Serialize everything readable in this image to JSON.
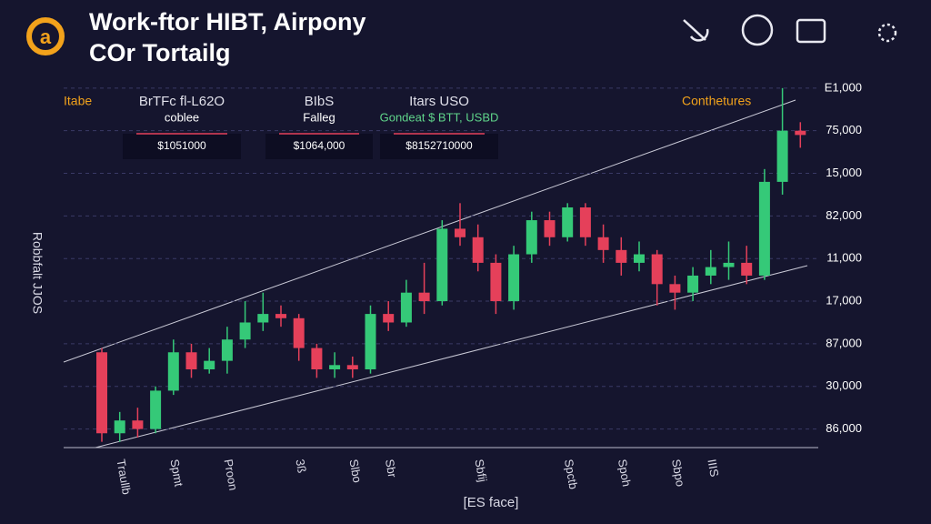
{
  "header": {
    "title": "Work-ftor HIBT, Airpony",
    "subtitle": "COr Tortailg"
  },
  "stats_label": "Itabe",
  "stats": [
    {
      "label": "BrTFc fl-L62O",
      "sublabel": "coblee",
      "value": "$1051000"
    },
    {
      "label": "BIbS",
      "sublabel": "Falleg",
      "value": "$1064,000"
    },
    {
      "label": "Itars USO",
      "sublabel": "Gondeat $ BTT, USBD",
      "value": "$8152710000"
    }
  ],
  "note": "Conthetures",
  "chart_data": {
    "type": "candlestick",
    "x_label": "[ES face]",
    "y_label": "Robbfalt JJOS",
    "categories": [
      null,
      "Traullb",
      null,
      null,
      "Spmt",
      null,
      null,
      "Proon",
      null,
      null,
      null,
      "3ß",
      null,
      null,
      "Slbo",
      null,
      "Sbr",
      null,
      null,
      null,
      null,
      "Sbfij",
      null,
      null,
      null,
      null,
      "Spctb",
      null,
      null,
      "Spoh",
      null,
      null,
      "Sbpo",
      null,
      "IIIS",
      null,
      null,
      null,
      null,
      null
    ],
    "open": [
      2.3,
      0.4,
      0.7,
      0.5,
      1.4,
      2.3,
      1.9,
      2.1,
      2.6,
      3.0,
      3.2,
      3.1,
      2.4,
      1.9,
      2.0,
      1.9,
      3.2,
      3.0,
      3.7,
      3.5,
      5.2,
      5.0,
      4.4,
      3.5,
      4.6,
      5.4,
      5.0,
      5.7,
      5.0,
      4.7,
      4.4,
      4.6,
      3.9,
      3.7,
      4.1,
      4.3,
      4.4,
      4.1,
      6.3,
      7.5
    ],
    "high": [
      2.4,
      0.9,
      1.0,
      1.5,
      2.6,
      2.5,
      2.4,
      2.9,
      3.5,
      3.7,
      3.4,
      3.2,
      2.5,
      2.3,
      2.2,
      3.4,
      3.5,
      4.0,
      4.4,
      5.4,
      5.8,
      5.3,
      4.6,
      4.8,
      5.6,
      5.6,
      5.8,
      5.8,
      5.3,
      5.0,
      4.9,
      4.7,
      4.1,
      4.3,
      4.7,
      4.9,
      4.8,
      6.6,
      8.5,
      7.7
    ],
    "low": [
      0.2,
      0.2,
      0.3,
      0.4,
      1.3,
      1.7,
      1.8,
      1.8,
      2.4,
      2.8,
      2.9,
      2.1,
      1.7,
      1.7,
      1.7,
      1.8,
      2.8,
      2.9,
      3.2,
      3.4,
      4.8,
      4.2,
      3.2,
      3.3,
      4.4,
      4.8,
      4.9,
      4.8,
      4.4,
      4.1,
      4.2,
      3.4,
      3.3,
      3.5,
      3.9,
      4.0,
      3.9,
      4.0,
      6.0,
      7.1
    ],
    "close": [
      0.4,
      0.7,
      0.5,
      1.4,
      2.3,
      1.9,
      2.1,
      2.6,
      3.0,
      3.2,
      3.1,
      2.4,
      1.9,
      2.0,
      1.9,
      3.2,
      3.0,
      3.7,
      3.5,
      5.2,
      5.0,
      4.4,
      3.5,
      4.6,
      5.4,
      5.0,
      5.7,
      5.0,
      4.7,
      4.4,
      4.6,
      3.9,
      3.7,
      4.1,
      4.3,
      4.4,
      4.1,
      6.3,
      7.5,
      7.4
    ],
    "up_color": "#35c978",
    "down_color": "#e5405a",
    "ylim": [
      0,
      9.5
    ],
    "yticks": [
      {
        "value": 0.5,
        "label": "86,000"
      },
      {
        "value": 1.5,
        "label": "30,000"
      },
      {
        "value": 2.5,
        "label": "87,000"
      },
      {
        "value": 3.5,
        "label": "17,000"
      },
      {
        "value": 4.5,
        "label": "11,000"
      },
      {
        "value": 5.5,
        "label": "82,000"
      },
      {
        "value": 6.5,
        "label": "15,000"
      },
      {
        "value": 7.5,
        "label": "75,000"
      },
      {
        "value": 8.5,
        "label": "E1,000"
      }
    ],
    "grid": true
  }
}
